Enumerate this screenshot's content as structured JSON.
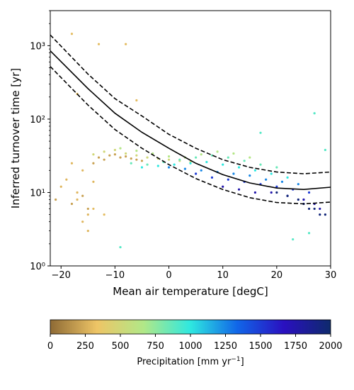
{
  "chart_data": {
    "type": "scatter",
    "xlabel": "Mean air temperature [degC]",
    "ylabel": "Inferred turnover time [yr]",
    "xlim": [
      -22,
      30
    ],
    "ylim": [
      1,
      3000
    ],
    "yscale": "log",
    "grid": false,
    "x_ticks": [
      -20,
      -10,
      0,
      10,
      20,
      30
    ],
    "x_tick_labels": [
      "−20",
      "−10",
      "0",
      "10",
      "20",
      "30"
    ],
    "y_ticks": [
      1,
      10,
      100,
      1000
    ],
    "y_tick_labels": [
      "10⁰",
      "10¹",
      "10²",
      "10³"
    ],
    "colorbar": {
      "label_prefix": "Precipitation [mm yr",
      "label_exp": "−1",
      "label_suffix": "]",
      "range": [
        0,
        2000
      ],
      "ticks": [
        0,
        250,
        500,
        750,
        1000,
        1250,
        1500,
        1750,
        2000
      ],
      "tick_labels": [
        "0",
        "250",
        "500",
        "750",
        "1000",
        "1250",
        "1500",
        "1750",
        "2000"
      ],
      "colormap": [
        "#8e6a35",
        "#eec566",
        "#b1e888",
        "#2ee8e0",
        "#1166e8",
        "#2a10c0",
        "#0e2a6c"
      ]
    },
    "fit_lines": [
      {
        "style": "solid",
        "color": "#000000",
        "x": [
          -22,
          -15,
          -10,
          -5,
          0,
          5,
          10,
          15,
          20,
          25,
          30
        ],
        "y": [
          850,
          260,
          120,
          66,
          40,
          25,
          17.5,
          13.5,
          11.5,
          11,
          11.8
        ]
      },
      {
        "style": "dashed",
        "color": "#000000",
        "x": [
          -22,
          -15,
          -10,
          -5,
          0,
          5,
          10,
          15,
          20,
          25,
          30
        ],
        "y": [
          1400,
          410,
          190,
          110,
          62,
          40,
          28,
          22,
          19,
          18,
          19
        ]
      },
      {
        "style": "dashed",
        "color": "#000000",
        "x": [
          -22,
          -15,
          -10,
          -5,
          0,
          5,
          10,
          15,
          20,
          25,
          30
        ],
        "y": [
          520,
          155,
          72,
          40,
          24,
          15.5,
          11,
          8.5,
          7.3,
          7,
          7.4
        ]
      }
    ],
    "scatter_groups": [
      {
        "x": [
          -21,
          -18,
          -16,
          -15,
          -14,
          -13,
          -12,
          -11,
          -10,
          -9,
          -8,
          -7,
          -6,
          -5
        ],
        "y": [
          8,
          7,
          9,
          6,
          25,
          30,
          28,
          32,
          33,
          30,
          31,
          29,
          28,
          27
        ],
        "precip": 200
      },
      {
        "x": [
          -20,
          -19,
          -17,
          -16,
          -15,
          -14,
          -16,
          -15,
          -17,
          -18
        ],
        "y": [
          12,
          15,
          10,
          20,
          5,
          14,
          4,
          3,
          8,
          25
        ],
        "precip": 280
      },
      {
        "x": [
          -18,
          -17,
          -13,
          -8,
          -6,
          -14,
          -12
        ],
        "y": [
          1450,
          220,
          1050,
          1050,
          180,
          6,
          5
        ],
        "precip": 300
      },
      {
        "x": [
          -14,
          -12,
          -10,
          -8,
          -6,
          -4,
          -2,
          0,
          2,
          4
        ],
        "y": [
          33,
          36,
          38,
          34,
          32,
          30,
          29,
          28,
          27,
          26
        ],
        "precip": 500
      },
      {
        "x": [
          -9,
          -6,
          -3,
          0,
          3,
          6,
          9,
          12,
          15
        ],
        "y": [
          40,
          37,
          34,
          31,
          30,
          33,
          36,
          34,
          30
        ],
        "precip": 650
      },
      {
        "x": [
          -7,
          -4,
          -1,
          2,
          5,
          8,
          11,
          14,
          17,
          20
        ],
        "y": [
          25,
          24,
          26,
          28,
          30,
          32,
          30,
          27,
          24,
          22
        ],
        "precip": 850
      },
      {
        "x": [
          -5,
          -2,
          1,
          4,
          7,
          10,
          13,
          16,
          19,
          22
        ],
        "y": [
          22,
          23,
          24,
          25,
          26,
          24,
          22,
          20,
          18,
          16
        ],
        "precip": 1000
      },
      {
        "x": [
          0,
          3,
          6,
          9,
          12,
          15,
          18,
          21,
          24
        ],
        "y": [
          22,
          21,
          20,
          19,
          18,
          17,
          15,
          14,
          13
        ],
        "precip": 1250
      },
      {
        "x": [
          5,
          8,
          11,
          14,
          17,
          20,
          23,
          26
        ],
        "y": [
          18,
          16,
          15,
          14,
          13,
          12,
          11,
          10
        ],
        "precip": 1500
      },
      {
        "x": [
          10,
          13,
          16,
          19,
          22,
          25,
          27,
          28
        ],
        "y": [
          12,
          11,
          10,
          10,
          9,
          8,
          7,
          6
        ],
        "precip": 1750
      },
      {
        "x": [
          20,
          22,
          24,
          25,
          26,
          27,
          28,
          29
        ],
        "y": [
          10,
          9,
          8,
          7,
          6,
          6,
          5,
          5
        ],
        "precip": 1950
      },
      {
        "x": [
          -9,
          23,
          26,
          27,
          29,
          17
        ],
        "y": [
          1.8,
          2.3,
          2.8,
          120,
          38,
          65
        ],
        "precip": 900
      }
    ]
  }
}
